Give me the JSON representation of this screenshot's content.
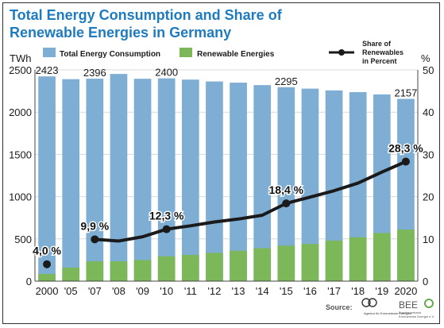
{
  "header": {
    "title_line1": "Total Energy Consumption and Share of",
    "title_line2": "Renewable Energies in Germany"
  },
  "legend": {
    "total": "Total Energy Consumption",
    "renewable": "Renewable Energies",
    "share_line1": "Share of",
    "share_line2": "Renewables",
    "share_line3": "in Percent"
  },
  "source": {
    "label": "Source:",
    "logo1_text": "Agentur für Erneuerbare Energien",
    "logo2_big": "BEE",
    "logo2_line1": "Bundesverband",
    "logo2_line2": "Erneuerbare Energie e.V."
  },
  "colors": {
    "total_bar": "#7faed4",
    "renewable_bar": "#7cb85a",
    "share_line": "#1a1a1a",
    "title": "#1e7bbf",
    "grid": "#d9d9d9"
  },
  "chart_data": {
    "type": "bar",
    "categories": [
      "2000",
      "'05",
      "'07",
      "'08",
      "'09",
      "'10",
      "'11",
      "'12",
      "'13",
      "'14",
      "'15",
      "'16",
      "'17",
      "'18",
      "'19",
      "2020"
    ],
    "series": [
      {
        "name": "Total Energy Consumption",
        "values": [
          2423,
          2390,
          2396,
          2452,
          2395,
          2400,
          2385,
          2363,
          2349,
          2320,
          2295,
          2278,
          2257,
          2237,
          2210,
          2157
        ]
      },
      {
        "name": "Renewable Energies",
        "values": [
          85,
          160,
          235,
          235,
          250,
          295,
          310,
          335,
          360,
          390,
          420,
          440,
          480,
          520,
          570,
          610
        ]
      },
      {
        "name": "Share of Renewables in Percent",
        "axis": "right",
        "type": "line",
        "values": [
          4.0,
          null,
          9.9,
          9.5,
          10.5,
          12.3,
          13.1,
          14.0,
          14.7,
          15.6,
          18.4,
          19.9,
          21.4,
          23.2,
          25.8,
          28.3
        ]
      }
    ],
    "bar_labels": [
      {
        "index": 0,
        "text": "2423"
      },
      {
        "index": 2,
        "text": "2396"
      },
      {
        "index": 5,
        "text": "2400"
      },
      {
        "index": 10,
        "text": "2295"
      },
      {
        "index": 15,
        "text": "2157"
      }
    ],
    "line_labels": [
      {
        "index": 0,
        "text": "4,0 %"
      },
      {
        "index": 2,
        "text": "9,9 %"
      },
      {
        "index": 5,
        "text": "12,3 %"
      },
      {
        "index": 10,
        "text": "18,4 %"
      },
      {
        "index": 15,
        "text": "28,3 %"
      }
    ],
    "ylabel_left": "TWh",
    "ylabel_right": "%",
    "ylim": [
      0,
      2500
    ],
    "ylim_right": [
      0,
      50
    ],
    "yticks": [
      "0",
      "500",
      "1000",
      "1500",
      "2000",
      "2500"
    ],
    "yticks_right": [
      "0",
      "10",
      "20",
      "30",
      "40",
      "50"
    ],
    "grid": true,
    "legend_position": "top"
  }
}
